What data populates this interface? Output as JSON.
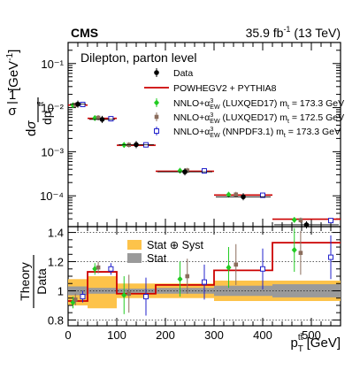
{
  "header": {
    "experiment": "CMS",
    "lumi_prefix": "35.9 fb",
    "lumi_exp": "-1",
    "lumi_suffix": " (13 TeV)"
  },
  "colors": {
    "data": "#000000",
    "powheg": "#cc0000",
    "luxqed_1733": "#22cc22",
    "luxqed_1725": "#8b6d5c",
    "nnpdf": "#2222cc",
    "stat_syst_band": "#fdc34a",
    "stat_band": "#9a9a9a"
  },
  "chart_data": [
    {
      "type": "scatter",
      "panel": "cross-section",
      "annotation": "Dilepton, parton level",
      "ylabel": "1/σ dσ/dp_T^tt̄ [GeV⁻¹]",
      "y_log": true,
      "ylim": [
        2e-05,
        0.3
      ],
      "xlim": [
        0,
        560
      ],
      "y_ticks": [
        "10⁻¹",
        "10⁻²",
        "10⁻³",
        "10⁻⁴"
      ],
      "bins": [
        [
          0,
          40
        ],
        [
          40,
          100
        ],
        [
          100,
          180
        ],
        [
          180,
          300
        ],
        [
          300,
          420
        ],
        [
          420,
          560
        ]
      ],
      "legend_position": "top-right",
      "series": [
        {
          "key": "data",
          "name": "Data",
          "marker": "dot",
          "x": [
            20,
            70,
            140,
            240,
            360,
            490
          ],
          "values": [
            0.012,
            0.0054,
            0.00145,
            0.00035,
            9.5e-05,
            2.2e-05
          ]
        },
        {
          "key": "powheg",
          "name": "POWHEGV2 + PYTHIA8",
          "marker": "line",
          "values": [
            0.0114,
            0.0057,
            0.0014,
            0.00036,
            0.000104,
            2.95e-05
          ]
        },
        {
          "key": "luxqed_1733",
          "name": "NNLO+α³_EW (LUXQED17) m_t = 173.3 GeV",
          "marker": "diamond",
          "x": [
            10,
            55,
            115,
            230,
            330,
            465
          ],
          "values": [
            0.0113,
            0.0058,
            0.00142,
            0.00037,
            0.000106,
            2.85e-05
          ]
        },
        {
          "key": "luxqed_1725",
          "name": "NNLO+α³_EW (LUXQED17) m_t = 172.5 GeV",
          "marker": "square-filled",
          "x": [
            15,
            62,
            125,
            245,
            345,
            478
          ],
          "values": [
            0.0115,
            0.0059,
            0.00143,
            0.000375,
            0.000107,
            2.8e-05
          ]
        },
        {
          "key": "nnpdf",
          "name": "NNLO+α³_EW (NNPDF3.1) m_t = 173.3 GeV",
          "marker": "square-open",
          "x": [
            30,
            88,
            160,
            280,
            400,
            540
          ],
          "values": [
            0.0118,
            0.0056,
            0.00143,
            0.000368,
            0.000103,
            2.75e-05
          ]
        }
      ]
    },
    {
      "type": "scatter",
      "panel": "ratio",
      "ylabel_top": "Theory",
      "ylabel_bottom": "Data",
      "xlabel": "p_T^tt̄ [GeV]",
      "ylim": [
        0.76,
        1.44
      ],
      "xlim": [
        0,
        560
      ],
      "y_ticks": [
        "0.8",
        "1",
        "1.2",
        "1.4"
      ],
      "x_ticks": [
        "0",
        "100",
        "200",
        "300",
        "400",
        "500"
      ],
      "bins": [
        [
          0,
          40
        ],
        [
          40,
          100
        ],
        [
          100,
          180
        ],
        [
          180,
          300
        ],
        [
          300,
          420
        ],
        [
          420,
          560
        ]
      ],
      "legend_position": "top",
      "legend": [
        "Stat ⊕ Syst",
        "Stat"
      ],
      "bands": {
        "stat_syst": [
          [
            0.9,
            1.08
          ],
          [
            0.88,
            1.1
          ],
          [
            0.95,
            1.05
          ],
          [
            0.95,
            1.05
          ],
          [
            0.93,
            1.07
          ],
          [
            0.93,
            1.07
          ]
        ],
        "stat": [
          [
            0.97,
            1.03
          ],
          [
            0.98,
            1.02
          ],
          [
            0.985,
            1.015
          ],
          [
            0.98,
            1.02
          ],
          [
            0.965,
            1.035
          ],
          [
            0.955,
            1.045
          ]
        ]
      },
      "series": [
        {
          "key": "powheg",
          "name": "POWHEGV2 + PYTHIA8",
          "values": [
            0.93,
            1.13,
            0.98,
            1.04,
            1.14,
            1.33
          ]
        },
        {
          "key": "luxqed_1733",
          "name": "NNLO+α³_EW (LUXQED17) m_t = 173.3 GeV",
          "x": [
            10,
            55,
            115,
            230,
            330,
            465
          ],
          "values": [
            0.92,
            1.15,
            0.97,
            1.08,
            1.16,
            1.28
          ],
          "errors": [
            0.04,
            0.04,
            0.13,
            0.12,
            0.14,
            0.15
          ]
        },
        {
          "key": "luxqed_1725",
          "name": "NNLO+α³_EW (LUXQED17) m_t = 172.5 GeV",
          "x": [
            15,
            62,
            125,
            245,
            345,
            478
          ],
          "values": [
            0.94,
            1.16,
            0.98,
            1.1,
            1.18,
            1.26
          ],
          "errors": [
            0.04,
            0.04,
            0.13,
            0.12,
            0.14,
            0.15
          ]
        },
        {
          "key": "nnpdf",
          "name": "NNLO+α³_EW (NNPDF3.1) m_t = 173.3 GeV",
          "x": [
            30,
            88,
            160,
            280,
            400,
            540
          ],
          "values": [
            0.96,
            1.15,
            0.96,
            1.06,
            1.15,
            1.23
          ],
          "errors": [
            0.04,
            0.04,
            0.13,
            0.12,
            0.14,
            0.15
          ]
        }
      ]
    }
  ]
}
